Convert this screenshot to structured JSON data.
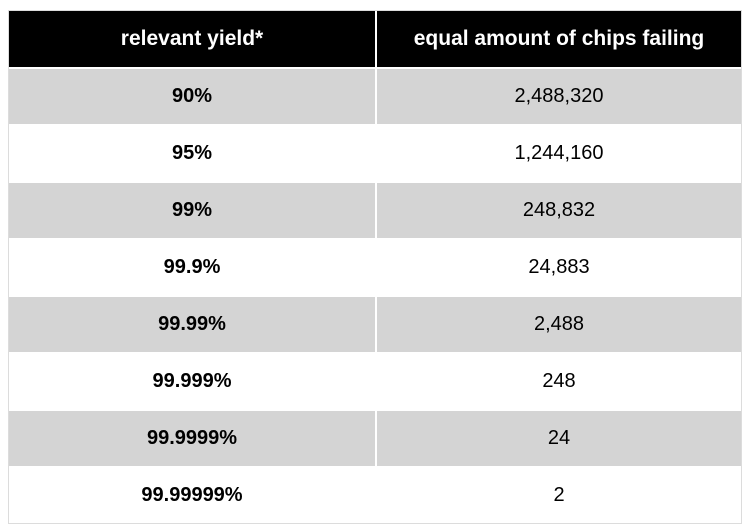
{
  "chart_data": {
    "type": "table",
    "columns": [
      "relevant yield*",
      "equal amount of chips failing"
    ],
    "rows": [
      [
        "90%",
        "2,488,320"
      ],
      [
        "95%",
        "1,244,160"
      ],
      [
        "99%",
        "248,832"
      ],
      [
        "99.9%",
        "24,883"
      ],
      [
        "99.99%",
        "2,488"
      ],
      [
        "99.999%",
        "248"
      ],
      [
        "99.9999%",
        "24"
      ],
      [
        "99.99999%",
        "2"
      ]
    ],
    "layout": {
      "header_bg": "#000000",
      "header_text_color": "#ffffff",
      "row_alt_bg": "#d4d4d4",
      "row_bg": "#ffffff",
      "outer_border_color": "#dcdcdc",
      "cell_divider_color": "#ffffff"
    }
  }
}
